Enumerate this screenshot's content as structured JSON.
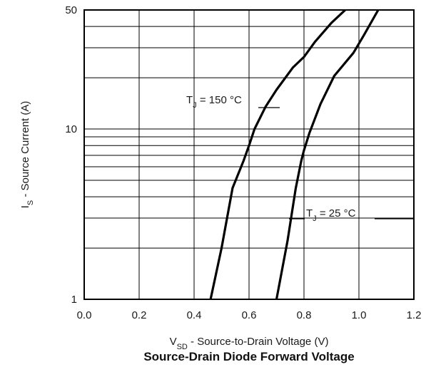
{
  "chart_data": {
    "type": "line",
    "title": "Source-Drain Diode Forward Voltage",
    "xlabel": {
      "main": "V",
      "sub": "SD",
      "rest": " - Source-to-Drain Voltage (V)"
    },
    "ylabel": {
      "main": "I",
      "sub": "S",
      "rest": " - Source Current (A)"
    },
    "xlim": [
      0.0,
      1.2
    ],
    "ylim": [
      1,
      50
    ],
    "yscale": "log",
    "grid": true,
    "x_ticks": [
      "0.0",
      "0.2",
      "0.4",
      "0.6",
      "0.8",
      "1.0",
      "1.2"
    ],
    "y_ticks": [
      {
        "value": 1,
        "label": "1"
      },
      {
        "value": 10,
        "label": "10"
      },
      {
        "value": 50,
        "label": "50"
      }
    ],
    "series": [
      {
        "name": {
          "main": "T",
          "sub": "J",
          "rest": " = 150 °C"
        },
        "x": [
          0.46,
          0.5,
          0.54,
          0.58,
          0.6,
          0.62,
          0.66,
          0.7,
          0.76,
          0.8,
          0.84,
          0.9,
          0.95
        ],
        "y": [
          1,
          2.0,
          4.5,
          6.5,
          8.0,
          10.0,
          13.5,
          17.0,
          23.0,
          26.5,
          32.5,
          42.0,
          50.0
        ]
      },
      {
        "name": {
          "main": "T",
          "sub": "J",
          "rest": " = 25 °C"
        },
        "x": [
          0.7,
          0.74,
          0.77,
          0.79,
          0.8,
          0.82,
          0.86,
          0.91,
          0.98,
          1.02,
          1.07
        ],
        "y": [
          1,
          2.2,
          4.5,
          6.5,
          7.5,
          9.5,
          14.0,
          20.5,
          28.0,
          36.0,
          50.0
        ]
      }
    ]
  }
}
